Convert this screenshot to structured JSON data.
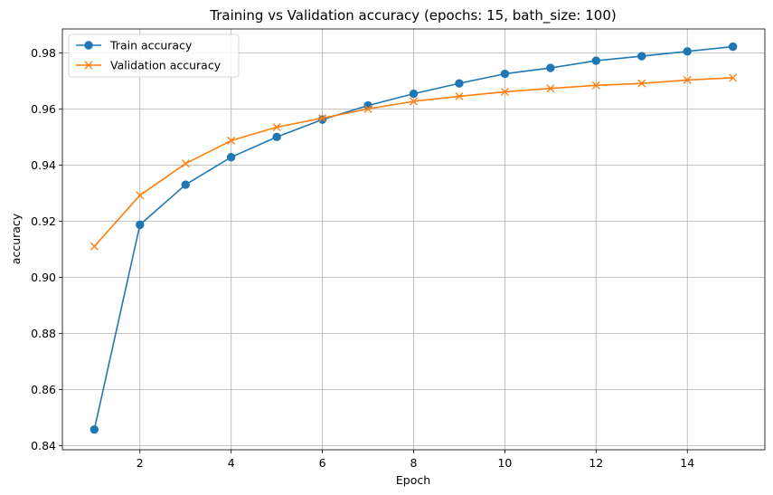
{
  "chart_data": {
    "type": "line",
    "title": "Training vs Validation accuracy (epochs: 15, bath_size: 100)",
    "xlabel": "Epoch",
    "ylabel": "accuracy",
    "xlim": [
      0.3,
      15.7
    ],
    "ylim": [
      0.8385,
      0.9885
    ],
    "xticks": [
      2,
      4,
      6,
      8,
      10,
      12,
      14
    ],
    "yticks": [
      0.84,
      0.86,
      0.88,
      0.9,
      0.92,
      0.94,
      0.96,
      0.98
    ],
    "ytick_labels": [
      "0.84",
      "0.86",
      "0.88",
      "0.90",
      "0.92",
      "0.94",
      "0.96",
      "0.98"
    ],
    "grid": true,
    "legend_position": "top-left",
    "x": [
      1,
      2,
      3,
      4,
      5,
      6,
      7,
      8,
      9,
      10,
      11,
      12,
      13,
      14,
      15
    ],
    "series": [
      {
        "name": "Train accuracy",
        "marker": "circle",
        "color": "#1f77b4",
        "values": [
          0.8457,
          0.9187,
          0.933,
          0.9428,
          0.95,
          0.9562,
          0.9612,
          0.9654,
          0.9691,
          0.9725,
          0.9746,
          0.9772,
          0.9788,
          0.9805,
          0.9822
        ]
      },
      {
        "name": "Validation accuracy",
        "marker": "x",
        "color": "#ff7f0e",
        "values": [
          0.911,
          0.9292,
          0.9405,
          0.9487,
          0.9535,
          0.9567,
          0.96,
          0.9627,
          0.9645,
          0.9661,
          0.9673,
          0.9684,
          0.9691,
          0.9703,
          0.9711
        ]
      }
    ]
  }
}
